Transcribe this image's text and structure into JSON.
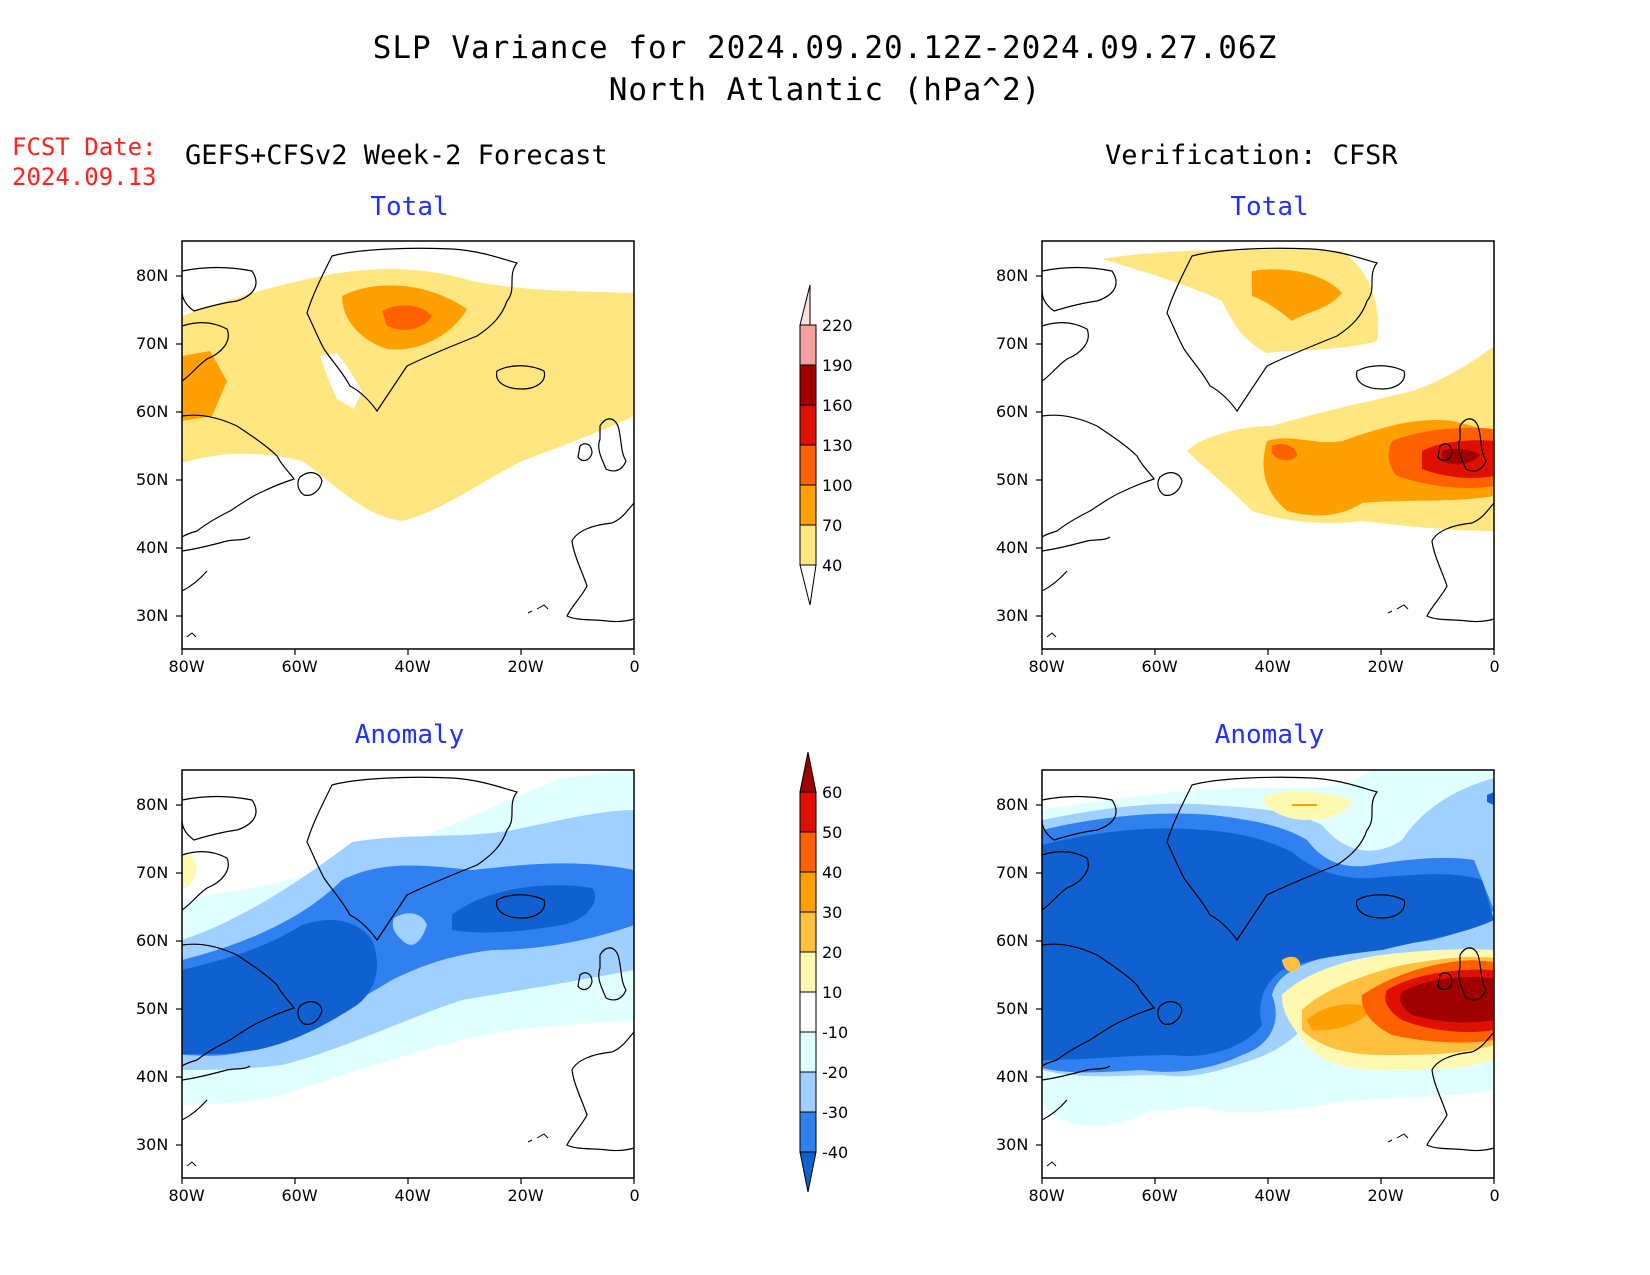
{
  "title": {
    "line1": "SLP Variance for 2024.09.20.12Z-2024.09.27.06Z",
    "line2": "North Atlantic (hPa^2)"
  },
  "fcst": {
    "label": "FCST Date:",
    "date": "2024.09.13"
  },
  "columns": {
    "left": "GEFS+CFSv2 Week-2 Forecast",
    "right": "Verification: CFSR"
  },
  "panels": [
    {
      "title": "Total"
    },
    {
      "title": "Total"
    },
    {
      "title": "Anomaly"
    },
    {
      "title": "Anomaly"
    }
  ],
  "axes": {
    "lat_labels": [
      "80N",
      "70N",
      "60N",
      "50N",
      "40N",
      "30N"
    ],
    "lon_labels": [
      "80W",
      "60W",
      "40W",
      "20W",
      "0"
    ]
  },
  "colorbar_total": {
    "labels": [
      "220",
      "190",
      "160",
      "130",
      "100",
      "70",
      "40"
    ],
    "colors": [
      "#fde0dc",
      "#f4a0a0",
      "#a00000",
      "#e01000",
      "#ff6000",
      "#ffa000",
      "#ffe680"
    ]
  },
  "colorbar_anomaly": {
    "labels": [
      "60",
      "50",
      "40",
      "30",
      "20",
      "10",
      "-10",
      "-20",
      "-30",
      "-40"
    ],
    "colors": [
      "#a00000",
      "#e01000",
      "#ff6000",
      "#ffa000",
      "#ffc040",
      "#fff8b0",
      "#ffffff",
      "#e0ffff",
      "#a0d0ff",
      "#3080f0",
      "#1060d0"
    ]
  }
}
